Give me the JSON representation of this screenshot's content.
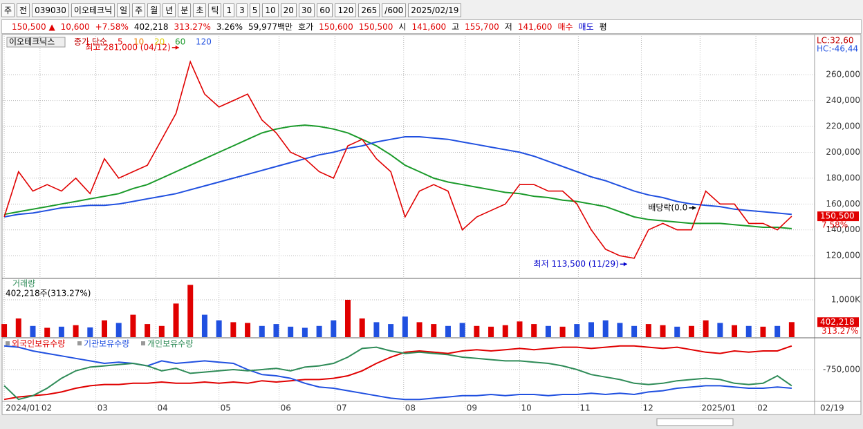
{
  "toolbar": {
    "row1": [
      "주",
      "전",
      "039030",
      "이오테크닉",
      "일",
      "주",
      "월",
      "년",
      "분",
      "초",
      "틱",
      "1",
      "3",
      "5",
      "10",
      "20",
      "30",
      "60",
      "120",
      "265",
      "/600",
      "2025/02/19"
    ],
    "row2": [
      {
        "text": "150,500 ▲",
        "color": "#e00000"
      },
      {
        "text": "10,600",
        "color": "#e00000"
      },
      {
        "text": "+7.58%",
        "color": "#e00000"
      },
      {
        "text": "402,218",
        "color": "#000000"
      },
      {
        "text": "313.27%",
        "color": "#e00000"
      },
      {
        "text": "3.26%",
        "color": "#000000"
      },
      {
        "text": "59,977백만",
        "color": "#000000"
      },
      {
        "text": "호가",
        "color": "#000000"
      },
      {
        "text": "150,600",
        "color": "#e00000"
      },
      {
        "text": "150,500",
        "color": "#e00000"
      },
      {
        "text": "시",
        "color": "#000000"
      },
      {
        "text": "141,600",
        "color": "#e00000"
      },
      {
        "text": "고",
        "color": "#000000"
      },
      {
        "text": "155,700",
        "color": "#e00000"
      },
      {
        "text": "저",
        "color": "#000000"
      },
      {
        "text": "141,600",
        "color": "#e00000"
      },
      {
        "text": "매수",
        "color": "#e00000"
      },
      {
        "text": "매도",
        "color": "#0000cc"
      },
      {
        "text": "평",
        "color": "#000000"
      }
    ]
  },
  "chart_data": [
    {
      "type": "line",
      "title": "이오테크닉스",
      "subtitle": "종가 단순",
      "x": [
        0,
        1,
        2,
        3,
        4,
        5,
        6,
        7,
        8,
        9,
        10,
        11,
        12,
        13,
        14,
        15,
        16,
        17,
        18,
        19,
        20,
        21,
        22,
        23,
        24,
        25,
        26,
        27,
        28,
        29,
        30,
        31,
        32,
        33,
        34,
        35,
        36,
        37,
        38,
        39,
        40,
        41,
        42,
        43,
        44,
        45,
        46,
        47,
        48,
        49,
        50,
        51,
        52,
        53,
        54,
        55
      ],
      "xlim": [
        -0.1,
        56.6
      ],
      "ylim": [
        103000,
        290000
      ],
      "yticks": [
        {
          "value": 120000,
          "label": "120,000"
        },
        {
          "value": 140000,
          "label": "140,000"
        },
        {
          "value": 160000,
          "label": "160,000"
        },
        {
          "value": 180000,
          "label": "180,000"
        },
        {
          "value": 200000,
          "label": "200,000"
        },
        {
          "value": 220000,
          "label": "220,000"
        },
        {
          "value": 240000,
          "label": "240,000"
        },
        {
          "value": 260000,
          "label": "260,000"
        }
      ],
      "close": {
        "color": "#e00000",
        "values": [
          150000,
          185000,
          170000,
          175000,
          170000,
          180000,
          168000,
          195000,
          180000,
          185000,
          190000,
          210000,
          230000,
          270000,
          245000,
          235000,
          240000,
          245000,
          225000,
          215000,
          200000,
          195000,
          185000,
          180000,
          205000,
          210000,
          195000,
          185000,
          150000,
          170000,
          175000,
          170000,
          140000,
          150000,
          155000,
          160000,
          175000,
          175000,
          170000,
          170000,
          160000,
          140000,
          125000,
          120000,
          118000,
          140000,
          145000,
          140000,
          140000,
          170000,
          160000,
          160000,
          145000,
          145000,
          140000,
          150500
        ]
      },
      "legend_extra": [
        {
          "label": "5",
          "color": "#e00000"
        },
        {
          "label": "10",
          "color": "#f08000"
        },
        {
          "label": "20",
          "color": "#e0d000"
        }
      ],
      "series": [
        {
          "name": "60",
          "color": "#1a9a2a",
          "values": [
            152000,
            154000,
            156000,
            158000,
            160000,
            162000,
            164000,
            166000,
            168000,
            172000,
            175000,
            180000,
            185000,
            190000,
            195000,
            200000,
            205000,
            210000,
            215000,
            218000,
            220000,
            221000,
            220000,
            218000,
            215000,
            210000,
            205000,
            198000,
            190000,
            185000,
            180000,
            177000,
            175000,
            173000,
            171000,
            169000,
            168000,
            166000,
            165000,
            163000,
            162000,
            160000,
            158000,
            154000,
            150000,
            148000,
            147000,
            146000,
            145000,
            145000,
            145000,
            144000,
            143000,
            142000,
            142000,
            141000
          ]
        },
        {
          "name": "120",
          "color": "#2050e0",
          "values": [
            150000,
            152000,
            153000,
            155000,
            157000,
            158000,
            159000,
            159000,
            160000,
            162000,
            164000,
            166000,
            168000,
            171000,
            174000,
            177000,
            180000,
            183000,
            186000,
            189000,
            192000,
            195000,
            198000,
            200000,
            203000,
            205000,
            208000,
            210000,
            212000,
            212000,
            211000,
            210000,
            208000,
            206000,
            204000,
            202000,
            200000,
            197000,
            193000,
            189000,
            185000,
            181000,
            178000,
            174000,
            170000,
            167000,
            165000,
            162000,
            160000,
            159000,
            158000,
            156000,
            155000,
            154000,
            153000,
            152000
          ]
        }
      ],
      "annotations": [
        {
          "label": "최고 281,000 (04/12)",
          "x": 12.3,
          "value": 281000,
          "color": "#e00000"
        },
        {
          "label": "최저 113,500 (11/29)",
          "x": 43.6,
          "value": 113500,
          "color": "#0000cc"
        },
        {
          "label": "배당락(0.0",
          "x": 48.4,
          "value": 157000,
          "color": "#000000"
        }
      ],
      "last_price": {
        "value": 150500,
        "label": "150,500",
        "change_label": "7.58%",
        "color": "#e00000"
      },
      "corner_labels": [
        "LC:32,60",
        "HC:-46,44"
      ]
    },
    {
      "type": "bar",
      "title": "거래량",
      "subtitle": "402,218주(313.27%)",
      "x": [
        0,
        1,
        2,
        3,
        4,
        5,
        6,
        7,
        8,
        9,
        10,
        11,
        12,
        13,
        14,
        15,
        16,
        17,
        18,
        19,
        20,
        21,
        22,
        23,
        24,
        25,
        26,
        27,
        28,
        29,
        30,
        31,
        32,
        33,
        34,
        35,
        36,
        37,
        38,
        39,
        40,
        41,
        42,
        43,
        44,
        45,
        46,
        47,
        48,
        49,
        50,
        51,
        52,
        53,
        54,
        55
      ],
      "xlim": [
        -0.1,
        56.6
      ],
      "ylim": [
        0,
        1555000
      ],
      "yticks": [
        {
          "value": 1000000,
          "label": "1,000K"
        }
      ],
      "up_color": "#e00000",
      "down_color": "#2050e0",
      "values": [
        350000,
        500000,
        300000,
        250000,
        280000,
        320000,
        260000,
        450000,
        380000,
        600000,
        350000,
        300000,
        900000,
        1400000,
        600000,
        450000,
        400000,
        380000,
        300000,
        350000,
        280000,
        250000,
        300000,
        450000,
        1000000,
        500000,
        400000,
        350000,
        550000,
        400000,
        350000,
        300000,
        380000,
        300000,
        280000,
        320000,
        420000,
        350000,
        300000,
        280000,
        350000,
        400000,
        450000,
        380000,
        300000,
        350000,
        320000,
        280000,
        300000,
        450000,
        380000,
        320000,
        300000,
        280000,
        300000,
        402218
      ],
      "last_labels": [
        "402,218",
        "313.27%"
      ]
    },
    {
      "type": "line",
      "x": [
        0,
        1,
        2,
        3,
        4,
        5,
        6,
        7,
        8,
        9,
        10,
        11,
        12,
        13,
        14,
        15,
        16,
        17,
        18,
        19,
        20,
        21,
        22,
        23,
        24,
        25,
        26,
        27,
        28,
        29,
        30,
        31,
        32,
        33,
        34,
        35,
        36,
        37,
        38,
        39,
        40,
        41,
        42,
        43,
        44,
        45,
        46,
        47,
        48,
        49,
        50,
        51,
        52,
        53,
        54,
        55
      ],
      "xlim": [
        -0.1,
        56.6
      ],
      "ylim": [
        -1000000,
        -500000
      ],
      "yticks": [
        {
          "value": -750000,
          "label": "-750,000"
        }
      ],
      "xticks": [
        {
          "value": 0,
          "label": "2024/01"
        },
        {
          "value": 2.5,
          "label": "02"
        },
        {
          "value": 6.4,
          "label": "03"
        },
        {
          "value": 10.6,
          "label": "04"
        },
        {
          "value": 15,
          "label": "05"
        },
        {
          "value": 19.2,
          "label": "06"
        },
        {
          "value": 23.1,
          "label": "07"
        },
        {
          "value": 27.9,
          "label": "08"
        },
        {
          "value": 32.2,
          "label": "09"
        },
        {
          "value": 36,
          "label": "10"
        },
        {
          "value": 40.1,
          "label": "11"
        },
        {
          "value": 44.5,
          "label": "12"
        },
        {
          "value": 48.6,
          "label": "2025/01"
        },
        {
          "value": 52.5,
          "label": "02"
        }
      ],
      "end_label": "02/19",
      "series": [
        {
          "name": "외국인보유수량",
          "color": "#e00000",
          "values": [
            -990000,
            -970000,
            -960000,
            -950000,
            -930000,
            -900000,
            -880000,
            -870000,
            -870000,
            -860000,
            -860000,
            -850000,
            -860000,
            -860000,
            -850000,
            -860000,
            -850000,
            -860000,
            -840000,
            -850000,
            -840000,
            -830000,
            -830000,
            -820000,
            -800000,
            -760000,
            -700000,
            -650000,
            -610000,
            -600000,
            -610000,
            -620000,
            -600000,
            -590000,
            -600000,
            -590000,
            -580000,
            -590000,
            -580000,
            -570000,
            -570000,
            -580000,
            -570000,
            -560000,
            -560000,
            -570000,
            -580000,
            -570000,
            -590000,
            -610000,
            -620000,
            -600000,
            -610000,
            -600000,
            -600000,
            -560000
          ]
        },
        {
          "name": "기관보유수량",
          "color": "#2050e0",
          "values": [
            -560000,
            -570000,
            -600000,
            -620000,
            -640000,
            -660000,
            -680000,
            -700000,
            -690000,
            -700000,
            -720000,
            -680000,
            -700000,
            -690000,
            -680000,
            -690000,
            -700000,
            -750000,
            -790000,
            -800000,
            -820000,
            -860000,
            -890000,
            -900000,
            -920000,
            -940000,
            -960000,
            -980000,
            -990000,
            -990000,
            -980000,
            -970000,
            -960000,
            -960000,
            -950000,
            -960000,
            -950000,
            -950000,
            -960000,
            -950000,
            -950000,
            -940000,
            -950000,
            -940000,
            -950000,
            -930000,
            -920000,
            -900000,
            -890000,
            -880000,
            -880000,
            -890000,
            -900000,
            -900000,
            -890000,
            -900000
          ]
        },
        {
          "name": "개인보유수량",
          "color": "#2e8b57",
          "values": [
            -880000,
            -990000,
            -960000,
            -900000,
            -820000,
            -760000,
            -730000,
            -720000,
            -710000,
            -700000,
            -720000,
            -760000,
            -740000,
            -780000,
            -770000,
            -760000,
            -750000,
            -760000,
            -750000,
            -740000,
            -760000,
            -730000,
            -720000,
            -700000,
            -650000,
            -580000,
            -570000,
            -600000,
            -620000,
            -610000,
            -620000,
            -630000,
            -650000,
            -660000,
            -670000,
            -680000,
            -680000,
            -690000,
            -700000,
            -720000,
            -750000,
            -790000,
            -810000,
            -830000,
            -860000,
            -870000,
            -860000,
            -840000,
            -830000,
            -820000,
            -830000,
            -860000,
            -870000,
            -860000,
            -800000,
            -880000
          ]
        }
      ]
    }
  ]
}
